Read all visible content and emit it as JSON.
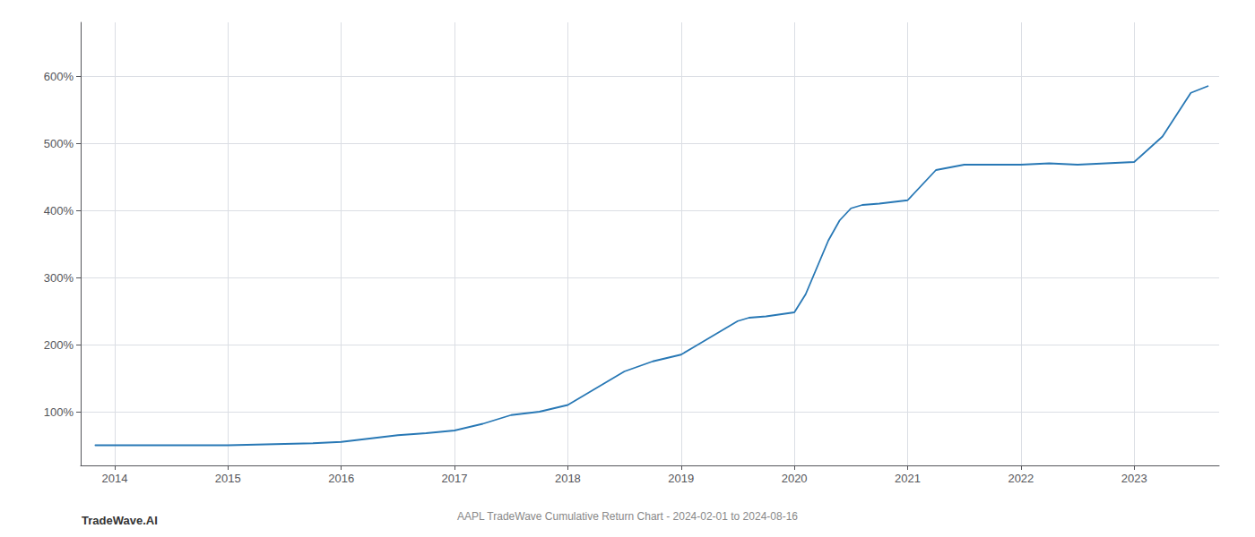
{
  "chart_data": {
    "type": "line",
    "title": "AAPL TradeWave Cumulative Return Chart - 2024-02-01 to 2024-08-16",
    "annotations": [
      "TradeWave.AI"
    ],
    "x": [
      2013.83,
      2014.0,
      2014.25,
      2014.5,
      2014.75,
      2015.0,
      2015.25,
      2015.5,
      2015.75,
      2016.0,
      2016.25,
      2016.5,
      2016.75,
      2017.0,
      2017.25,
      2017.5,
      2017.75,
      2018.0,
      2018.25,
      2018.5,
      2018.75,
      2019.0,
      2019.1,
      2019.2,
      2019.3,
      2019.4,
      2019.5,
      2019.6,
      2019.75,
      2020.0,
      2020.1,
      2020.2,
      2020.3,
      2020.4,
      2020.5,
      2020.6,
      2020.75,
      2021.0,
      2021.25,
      2021.5,
      2021.75,
      2022.0,
      2022.25,
      2022.5,
      2022.75,
      2023.0,
      2023.25,
      2023.5,
      2023.65
    ],
    "values": [
      50,
      50,
      50,
      50,
      50,
      50,
      51,
      52,
      53,
      55,
      60,
      65,
      68,
      72,
      82,
      95,
      100,
      110,
      135,
      160,
      175,
      185,
      195,
      205,
      215,
      225,
      235,
      240,
      242,
      248,
      275,
      315,
      355,
      385,
      403,
      408,
      410,
      415,
      460,
      468,
      468,
      468,
      470,
      468,
      470,
      472,
      510,
      575,
      585
    ],
    "color": "#2878b5",
    "xlim": [
      2013.7,
      2023.75
    ],
    "ylim": [
      20,
      680
    ],
    "xticks": [
      2014,
      2015,
      2016,
      2017,
      2018,
      2019,
      2020,
      2021,
      2022,
      2023
    ],
    "yticks": [
      {
        "value": 100,
        "label": "100%"
      },
      {
        "value": 200,
        "label": "200%"
      },
      {
        "value": 300,
        "label": "300%"
      },
      {
        "value": 400,
        "label": "400%"
      },
      {
        "value": 500,
        "label": "500%"
      },
      {
        "value": 600,
        "label": "600%"
      }
    ],
    "grid": true
  }
}
